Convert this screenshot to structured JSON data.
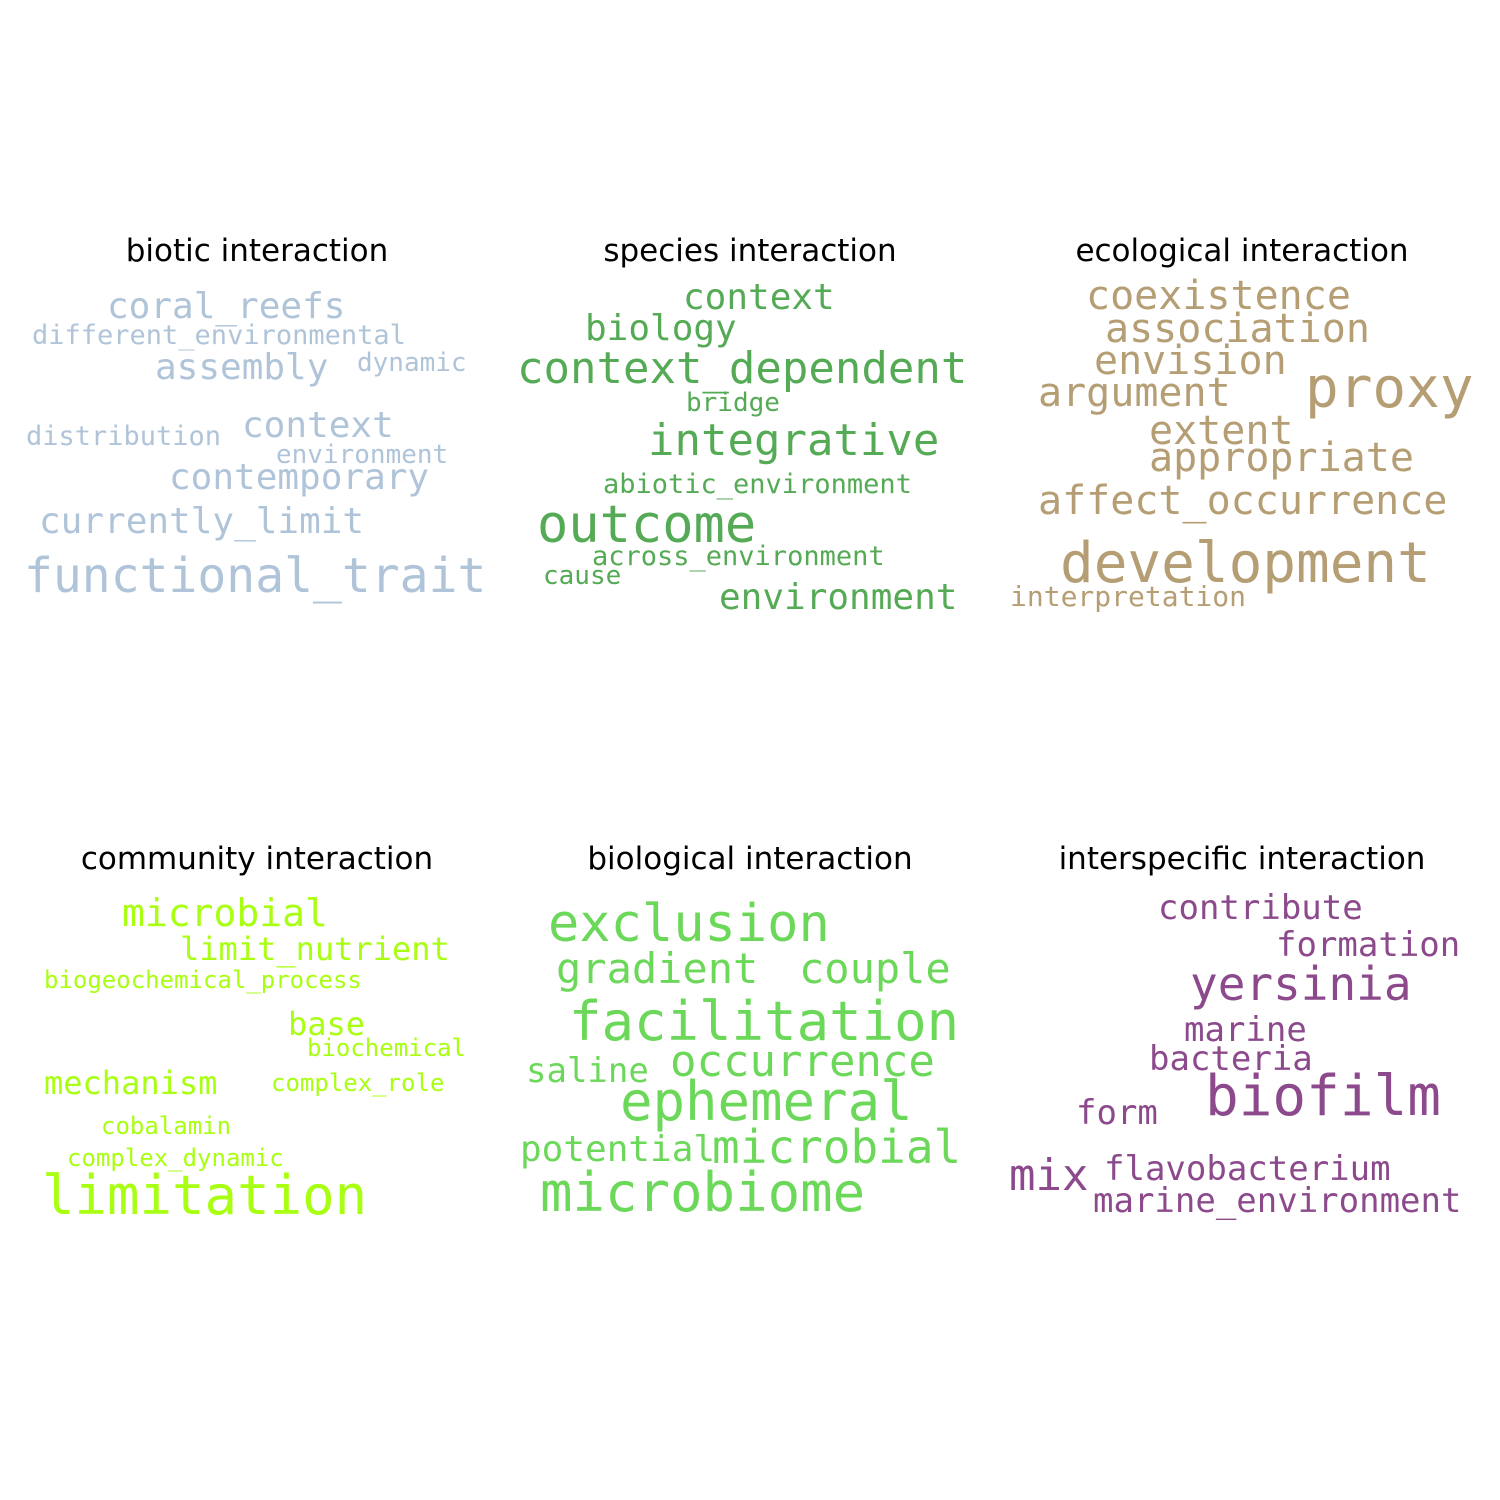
{
  "panels": [
    {
      "title": "biotic interaction",
      "color": "#b0c4d9",
      "words": [
        "coral_reefs",
        "different_environmental",
        "assembly",
        "dynamic",
        "distribution",
        "context",
        "environment",
        "contemporary",
        "currently_limit",
        "functional_trait"
      ]
    },
    {
      "title": "species interaction",
      "color": "#55aa55",
      "words": [
        "context",
        "biology",
        "context_dependent",
        "bridge",
        "integrative",
        "abiotic_environment",
        "outcome",
        "across_environment",
        "cause",
        "environment"
      ]
    },
    {
      "title": "ecological interaction",
      "color": "#b59e74",
      "words": [
        "coexistence",
        "association",
        "envision",
        "argument",
        "proxy",
        "extent",
        "appropriate",
        "affect_occurrence",
        "development",
        "interpretation"
      ]
    },
    {
      "title": "community interaction",
      "color": "#a8ff11",
      "words": [
        "microbial",
        "limit_nutrient",
        "biogeochemical_process",
        "base",
        "biochemical",
        "mechanism",
        "complex_role",
        "cobalamin",
        "complex_dynamic",
        "limitation"
      ]
    },
    {
      "title": "biological interaction",
      "color": "#6cd85a",
      "words": [
        "exclusion",
        "gradient",
        "couple",
        "facilitation",
        "saline",
        "occurrence",
        "ephemeral",
        "potential",
        "microbial",
        "microbiome"
      ]
    },
    {
      "title": "interspecific interaction",
      "color": "#8c4a8c",
      "words": [
        "contribute",
        "formation",
        "yersinia",
        "marine",
        "bacteria",
        "biofilm",
        "form",
        "mix",
        "flavobacterium",
        "marine_environment"
      ]
    }
  ]
}
